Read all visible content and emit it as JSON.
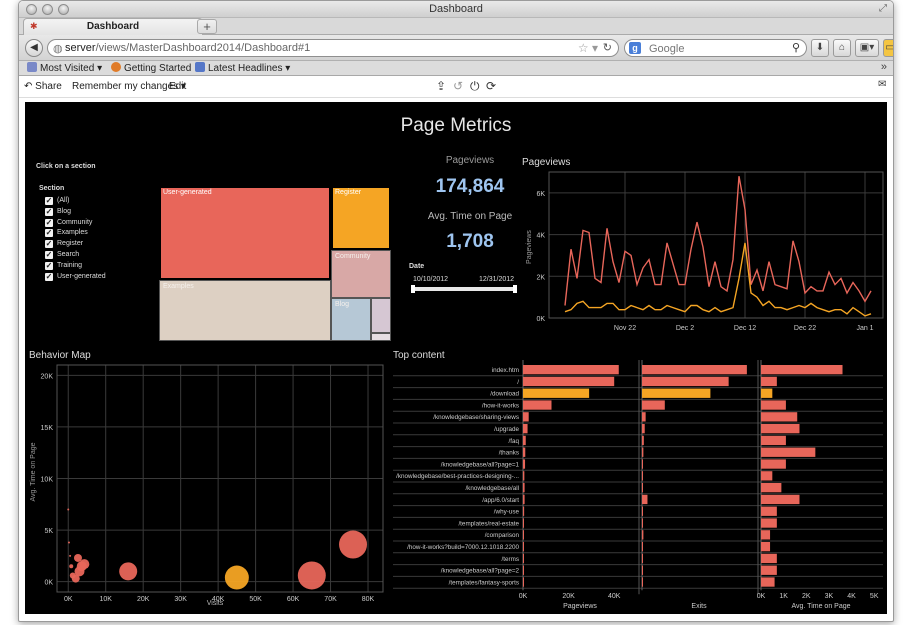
{
  "window": {
    "title": "Dashboard"
  },
  "tab": {
    "label": "Dashboard",
    "new_tab": "+"
  },
  "nav": {
    "url_host": "server",
    "url_path": "/views/MasterDashboard2014/Dashboard#1",
    "search_placeholder": "Google"
  },
  "bookmarks": [
    "Most Visited",
    "Getting Started",
    "Latest Headlines"
  ],
  "toolbar": {
    "share": "Share",
    "remember": "Remember my changes",
    "edit": "Edit"
  },
  "dashboard": {
    "title": "Page Metrics",
    "click_hint": "Click on a section",
    "section_label": "Section",
    "sections": [
      "(All)",
      "Blog",
      "Community",
      "Examples",
      "Register",
      "Search",
      "Training",
      "User-generated"
    ],
    "treemap": [
      {
        "label": "User-generated",
        "color": "#e8665a",
        "highlight": true
      },
      {
        "label": "Register",
        "color": "#f5a524",
        "highlight": true
      },
      {
        "label": "Community",
        "color": "#d8a8a6",
        "highlight": false
      },
      {
        "label": "Examples",
        "color": "#ddd0c3",
        "highlight": false
      },
      {
        "label": "Blog",
        "color": "#b6c8d6",
        "highlight": false
      },
      {
        "label": "",
        "color": "#d6c7d3",
        "highlight": false
      },
      {
        "label": "",
        "color": "#e6dde2",
        "highlight": false
      }
    ],
    "kpis": {
      "pageviews_label": "Pageviews",
      "pageviews_value": "174,864",
      "time_label": "Avg. Time on Page",
      "time_value": "1,708"
    },
    "date_filter": {
      "label": "Date",
      "start": "10/10/2012",
      "end": "12/31/2012"
    },
    "colors": {
      "primary": "#e8665a",
      "secondary": "#f5a524",
      "kpi": "#9ec5f0",
      "background": "#000000"
    }
  },
  "chart_data": [
    {
      "type": "line",
      "title": "Pageviews",
      "ylabel": "Pageviews",
      "xlabel": "",
      "x_ticks": [
        "Nov 22",
        "Dec 2",
        "Dec 12",
        "Dec 22",
        "Jan 1"
      ],
      "y_ticks": [
        "0K",
        "2K",
        "4K",
        "6K"
      ],
      "ylim": [
        0,
        7000
      ],
      "grid": true,
      "series": [
        {
          "color": "#e8665a",
          "values": [
            600,
            3300,
            1900,
            4200,
            4100,
            1900,
            1700,
            4300,
            2700,
            1700,
            3200,
            3000,
            1600,
            2400,
            2800,
            1600,
            1600,
            3600,
            2600,
            1600,
            1600,
            3300,
            4600,
            3400,
            1500,
            2700,
            1500,
            1300,
            2800,
            6800,
            5200,
            1600,
            2300,
            1300,
            2700,
            1600,
            1500,
            1400,
            3700,
            2700,
            1200,
            1500,
            1300,
            1300,
            2200,
            1600,
            1900,
            1200,
            1700,
            1300,
            800,
            1300
          ]
        },
        {
          "color": "#f5a524",
          "values": [
            300,
            400,
            700,
            800,
            500,
            500,
            500,
            700,
            700,
            400,
            400,
            600,
            500,
            400,
            600,
            400,
            400,
            600,
            500,
            400,
            300,
            600,
            600,
            400,
            300,
            500,
            300,
            400,
            500,
            1900,
            3600,
            1200,
            1000,
            600,
            800,
            500,
            500,
            400,
            500,
            600,
            500,
            700,
            500,
            400,
            300,
            400,
            400,
            200,
            500,
            300,
            100,
            200
          ]
        }
      ]
    },
    {
      "type": "scatter",
      "title": "Behavior Map",
      "xlabel": "Visits",
      "ylabel": "Avg. Time on Page",
      "x_ticks": [
        "0K",
        "10K",
        "20K",
        "30K",
        "40K",
        "50K",
        "60K",
        "70K",
        "80K"
      ],
      "y_ticks": [
        "0K",
        "5K",
        "10K",
        "15K",
        "20K"
      ],
      "xlim": [
        -3000,
        84000
      ],
      "ylim": [
        -1000,
        21000
      ],
      "grid": true,
      "points": [
        {
          "x": 0,
          "y": 7000,
          "size": 1,
          "color": "#e8665a"
        },
        {
          "x": 200,
          "y": 3800,
          "size": 1,
          "color": "#e8665a"
        },
        {
          "x": 500,
          "y": 2500,
          "size": 1,
          "color": "#e8665a"
        },
        {
          "x": 800,
          "y": 1500,
          "size": 2,
          "color": "#e8665a"
        },
        {
          "x": 1200,
          "y": 600,
          "size": 3,
          "color": "#e8665a"
        },
        {
          "x": 2000,
          "y": 300,
          "size": 4,
          "color": "#e8665a"
        },
        {
          "x": 2600,
          "y": 2300,
          "size": 4,
          "color": "#e8665a"
        },
        {
          "x": 3000,
          "y": 1000,
          "size": 5,
          "color": "#e8665a"
        },
        {
          "x": 3600,
          "y": 1500,
          "size": 5,
          "color": "#e8665a"
        },
        {
          "x": 4300,
          "y": 1700,
          "size": 5,
          "color": "#e8665a"
        },
        {
          "x": 16000,
          "y": 1000,
          "size": 9,
          "color": "#e8665a"
        },
        {
          "x": 45000,
          "y": 400,
          "size": 12,
          "color": "#f5a524"
        },
        {
          "x": 65000,
          "y": 600,
          "size": 14,
          "color": "#e8665a"
        },
        {
          "x": 76000,
          "y": 3600,
          "size": 14,
          "color": "#e8665a"
        }
      ]
    },
    {
      "type": "bar",
      "title": "Top content",
      "categories": [
        "index.htm",
        "/",
        "/download",
        "/how-it-works",
        "/knowledgebase/sharing-views",
        "/upgrade",
        "/faq",
        "/thanks",
        "/knowledgebase/all?page=1",
        "/knowledgebase/best-practices-designing-...",
        "/knowledgebase/all",
        "/app/6.0/start",
        "/why-use",
        "/templates/real-estate",
        "/comparison",
        "/how-it-works?build=7000.12.1018.2200",
        "/terms",
        "/knowledgebase/all?page=2",
        "/templates/fantasy-sports"
      ],
      "highlight_index": 2,
      "series": [
        {
          "name": "Pageviews",
          "x_ticks": [
            "0K",
            "20K",
            "40K"
          ],
          "xlim": [
            0,
            50000
          ],
          "values": [
            42000,
            40000,
            29000,
            12500,
            2500,
            2000,
            1200,
            1000,
            900,
            600,
            700,
            700,
            500,
            400,
            400,
            300,
            300,
            300,
            300
          ]
        },
        {
          "name": "Exits",
          "x_ticks": [],
          "xlim": [
            0,
            25000
          ],
          "values": [
            23000,
            19000,
            15000,
            5000,
            800,
            600,
            400,
            300,
            200,
            200,
            200,
            1200,
            200,
            200,
            300,
            200,
            200,
            100,
            100
          ]
        },
        {
          "name": "Avg. Time on Page",
          "x_ticks": [
            "0K",
            "1K",
            "2K",
            "3K",
            "4K",
            "5K"
          ],
          "xlim": [
            0,
            5300
          ],
          "values": [
            3600,
            700,
            500,
            1100,
            1600,
            1700,
            1100,
            2400,
            1100,
            500,
            900,
            1700,
            700,
            700,
            400,
            400,
            700,
            700,
            600
          ]
        }
      ]
    }
  ]
}
